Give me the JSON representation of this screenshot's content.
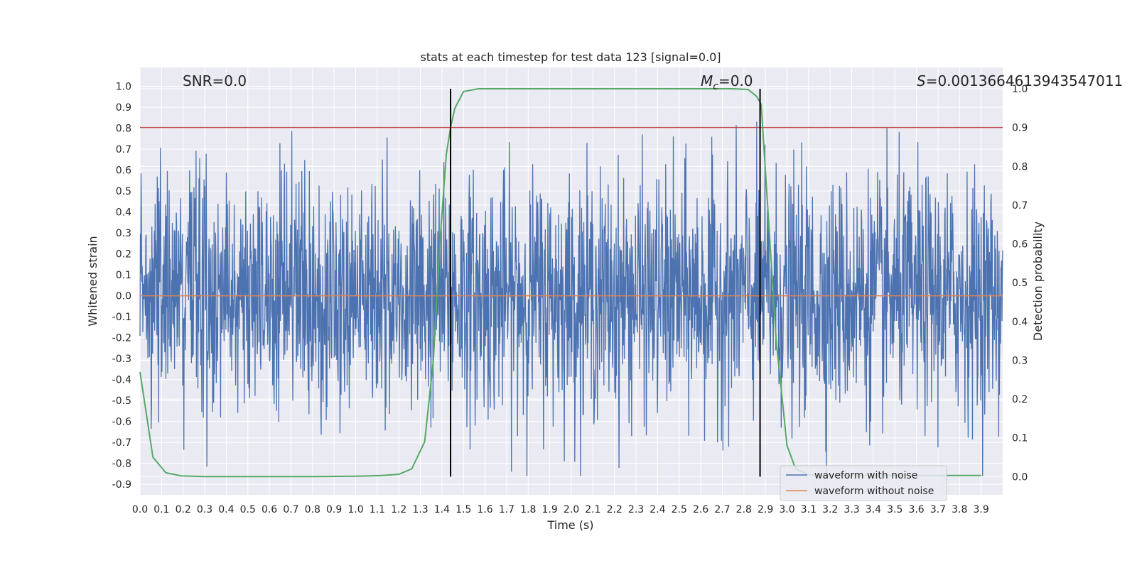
{
  "chart_data": {
    "type": "line",
    "title": "stats at each timestep for test data 123 [signal=0.0]",
    "xlabel": "Time (s)",
    "ylabel": "Whitened strain",
    "y2label": "Detection probability",
    "xlim": [
      0.0,
      4.0
    ],
    "ylim": [
      -0.95,
      1.09
    ],
    "y2lim": [
      -0.047,
      1.055
    ],
    "x_ticks": [
      "0.0",
      "0.1",
      "0.2",
      "0.3",
      "0.4",
      "0.5",
      "0.6",
      "0.7",
      "0.8",
      "0.9",
      "1.0",
      "1.1",
      "1.2",
      "1.3",
      "1.4",
      "1.5",
      "1.6",
      "1.7",
      "1.8",
      "1.9",
      "2.0",
      "2.1",
      "2.2",
      "2.3",
      "2.4",
      "2.5",
      "2.6",
      "2.7",
      "2.8",
      "2.9",
      "3.0",
      "3.1",
      "3.2",
      "3.3",
      "3.4",
      "3.5",
      "3.6",
      "3.7",
      "3.8",
      "3.9"
    ],
    "y_ticks": [
      "1.0",
      "0.9",
      "0.8",
      "0.7",
      "0.6",
      "0.5",
      "0.4",
      "0.3",
      "0.2",
      "0.1",
      "0.0",
      "-0.1",
      "-0.2",
      "-0.3",
      "-0.4",
      "-0.5",
      "-0.6",
      "-0.7",
      "-0.8",
      "-0.9"
    ],
    "y2_ticks": [
      "1.0",
      "0.9",
      "0.8",
      "0.7",
      "0.6",
      "0.5",
      "0.4",
      "0.3",
      "0.2",
      "0.1",
      "0.0"
    ],
    "grid": true,
    "legend": "bottom-right",
    "annotations": {
      "snr": "SNR=0.0",
      "mc_symbol": "M",
      "mc_sub": "c",
      "mc_value": "=0.0",
      "s_symbol": "S",
      "s_value": "=0.0013664613943547011"
    },
    "series": [
      {
        "name": "waveform with noise",
        "color": "#4c72b0",
        "style": "noise",
        "amplitude_ylim": [
          -0.86,
          1.0
        ]
      },
      {
        "name": "waveform without noise",
        "color": "#dd8452",
        "values_constant": 0.0
      }
    ],
    "detection_probability": {
      "color": "#55a868",
      "x": [
        0.0,
        0.06,
        0.12,
        0.19,
        0.3,
        0.5,
        0.8,
        1.0,
        1.12,
        1.2,
        1.26,
        1.32,
        1.36,
        1.39,
        1.42,
        1.44,
        1.46,
        1.5,
        1.57,
        1.7,
        2.0,
        2.5,
        2.75,
        2.82,
        2.86,
        2.88,
        2.91,
        2.95,
        3.0,
        3.04,
        3.1,
        3.3,
        3.6,
        3.9
      ],
      "y": [
        0.27,
        0.05,
        0.01,
        0.002,
        0.0,
        0.0,
        0.0,
        0.001,
        0.003,
        0.006,
        0.02,
        0.09,
        0.3,
        0.6,
        0.83,
        0.9,
        0.95,
        0.993,
        1.0,
        1.0,
        1.0,
        1.0,
        1.0,
        0.998,
        0.98,
        0.96,
        0.7,
        0.35,
        0.08,
        0.02,
        0.005,
        0.003,
        0.003,
        0.003
      ]
    },
    "threshold_line": {
      "color": "#c44e52",
      "y2": 0.9
    },
    "vertical_lines": {
      "color": "#000000",
      "x": [
        1.44,
        2.875
      ]
    }
  }
}
